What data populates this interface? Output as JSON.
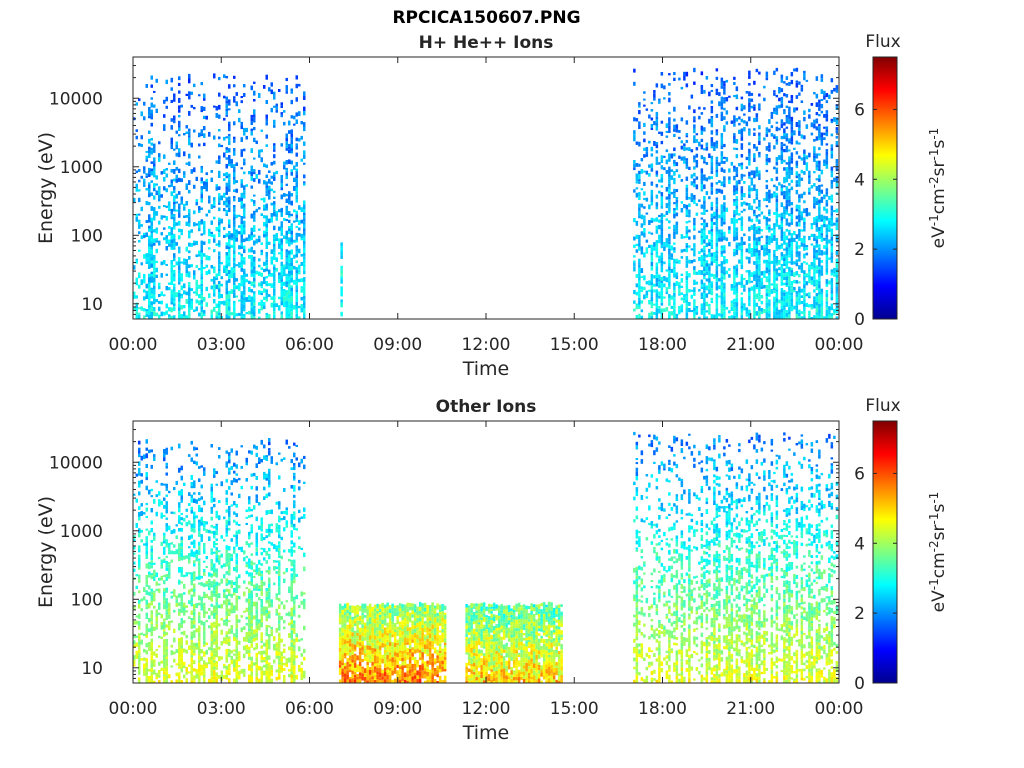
{
  "figure": {
    "title_line1": "RPCICA150607.PNG"
  },
  "colorbar": {
    "label": "Flux",
    "unit_label": "eV-1cm-2sr-1s-1",
    "range": [
      0,
      7.5
    ],
    "ticks": [
      "0",
      "2",
      "4",
      "6"
    ],
    "colormap": "jet",
    "colors": [
      "#00008f",
      "#0000ff",
      "#00ffff",
      "#ffff00",
      "#ff0000",
      "#800000"
    ]
  },
  "chart_data": [
    {
      "type": "heatmap",
      "title": "H+ He++ Ions",
      "xlabel": "Time",
      "ylabel": "Energy (eV)",
      "x_range_hours": [
        0,
        24
      ],
      "xticks": [
        "00:00",
        "03:00",
        "06:00",
        "09:00",
        "12:00",
        "15:00",
        "18:00",
        "21:00",
        "00:00"
      ],
      "y_scale": "log",
      "y_range": [
        6,
        40000
      ],
      "yticks": [
        "10",
        "100",
        "1000",
        "10000"
      ],
      "colorbar_label": "Flux",
      "blocks": [
        {
          "t_start": 0.0,
          "t_end": 5.8,
          "e_min": 6,
          "e_max": 20000,
          "flux_low_energy": 2.8,
          "flux_high_energy": 1.6,
          "pattern": "vertical-streaks"
        },
        {
          "t_start": 7.05,
          "t_end": 7.12,
          "e_min": 6,
          "e_max": 80,
          "flux_low_energy": 3.0,
          "flux_high_energy": 2.8,
          "pattern": "single-streak"
        },
        {
          "t_start": 17.0,
          "t_end": 23.95,
          "e_min": 6,
          "e_max": 25000,
          "flux_low_energy": 2.8,
          "flux_high_energy": 1.6,
          "pattern": "vertical-streaks"
        }
      ]
    },
    {
      "type": "heatmap",
      "title": "Other Ions",
      "xlabel": "Time",
      "ylabel": "Energy (eV)",
      "x_range_hours": [
        0,
        24
      ],
      "xticks": [
        "00:00",
        "03:00",
        "06:00",
        "09:00",
        "12:00",
        "15:00",
        "18:00",
        "21:00",
        "00:00"
      ],
      "y_scale": "log",
      "y_range": [
        6,
        40000
      ],
      "yticks": [
        "10",
        "100",
        "1000",
        "10000"
      ],
      "colorbar_label": "Flux",
      "blocks": [
        {
          "t_start": 0.0,
          "t_end": 5.8,
          "e_min": 6,
          "e_max": 20000,
          "flux_low_energy": 4.5,
          "flux_high_energy": 1.8,
          "pattern": "vertical-streaks"
        },
        {
          "t_start": 7.0,
          "t_end": 10.6,
          "e_min": 6,
          "e_max": 80,
          "flux_low_energy": 5.6,
          "flux_high_energy": 3.8,
          "pattern": "dense"
        },
        {
          "t_start": 11.3,
          "t_end": 14.6,
          "e_min": 6,
          "e_max": 80,
          "flux_low_energy": 5.0,
          "flux_high_energy": 3.4,
          "pattern": "dense"
        },
        {
          "t_start": 17.0,
          "t_end": 23.95,
          "e_min": 6,
          "e_max": 25000,
          "flux_low_energy": 4.5,
          "flux_high_energy": 1.8,
          "pattern": "vertical-streaks"
        }
      ]
    }
  ]
}
